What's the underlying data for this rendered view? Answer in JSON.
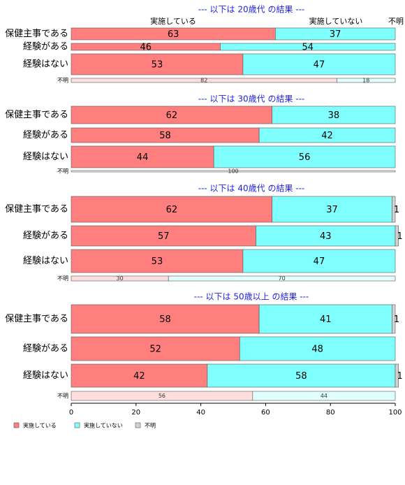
{
  "chart_data": {
    "type": "bar",
    "orientation": "horizontal-stacked-percent",
    "column_headers": [
      "実施している",
      "実施していない",
      "不明"
    ],
    "xlim": [
      0,
      100
    ],
    "xticks": [
      0,
      20,
      40,
      60,
      80,
      100
    ],
    "series_names": [
      "実施している",
      "実施していない",
      "不明"
    ],
    "colors": {
      "実施している": "#ff7f7f",
      "実施していない": "#80ffff",
      "不明": "#d3d3d3"
    },
    "legend": {
      "placement": "bottom-left",
      "entries": [
        "実施している",
        "実施していない",
        "不明"
      ]
    },
    "panels": [
      {
        "title": "--- 以下は 20歳代 の結果 ---",
        "rows": [
          {
            "label": "保健主事である",
            "values": [
              63,
              37,
              0
            ],
            "small": false
          },
          {
            "label": "経験がある",
            "values": [
              46,
              54,
              0
            ],
            "small": false
          },
          {
            "label": "経験はない",
            "values": [
              53,
              47,
              0
            ],
            "small": false
          },
          {
            "label": "不明",
            "values": [
              82,
              18,
              0
            ],
            "small": true
          }
        ]
      },
      {
        "title": "--- 以下は 30歳代 の結果 ---",
        "rows": [
          {
            "label": "保健主事である",
            "values": [
              62,
              38,
              0
            ],
            "small": false
          },
          {
            "label": "経験がある",
            "values": [
              58,
              42,
              0
            ],
            "small": false
          },
          {
            "label": "経験はない",
            "values": [
              44,
              56,
              0
            ],
            "small": false
          },
          {
            "label": "不明",
            "values": [
              0,
              0,
              100
            ],
            "small": true
          }
        ]
      },
      {
        "title": "--- 以下は 40歳代 の結果 ---",
        "rows": [
          {
            "label": "保健主事である",
            "values": [
              62,
              37,
              1
            ],
            "small": false
          },
          {
            "label": "経験がある",
            "values": [
              57,
              43,
              1
            ],
            "small": false
          },
          {
            "label": "経験はない",
            "values": [
              53,
              47,
              0
            ],
            "small": false
          },
          {
            "label": "不明",
            "values": [
              30,
              70,
              0
            ],
            "small": true
          }
        ]
      },
      {
        "title": "--- 以下は 50歳以上 の結果 ---",
        "rows": [
          {
            "label": "保健主事である",
            "values": [
              58,
              41,
              1
            ],
            "small": false
          },
          {
            "label": "経験がある",
            "values": [
              52,
              48,
              0
            ],
            "small": false
          },
          {
            "label": "経験はない",
            "values": [
              42,
              58,
              1
            ],
            "small": false
          },
          {
            "label": "不明",
            "values": [
              56,
              44,
              0
            ],
            "small": true
          }
        ]
      }
    ]
  }
}
